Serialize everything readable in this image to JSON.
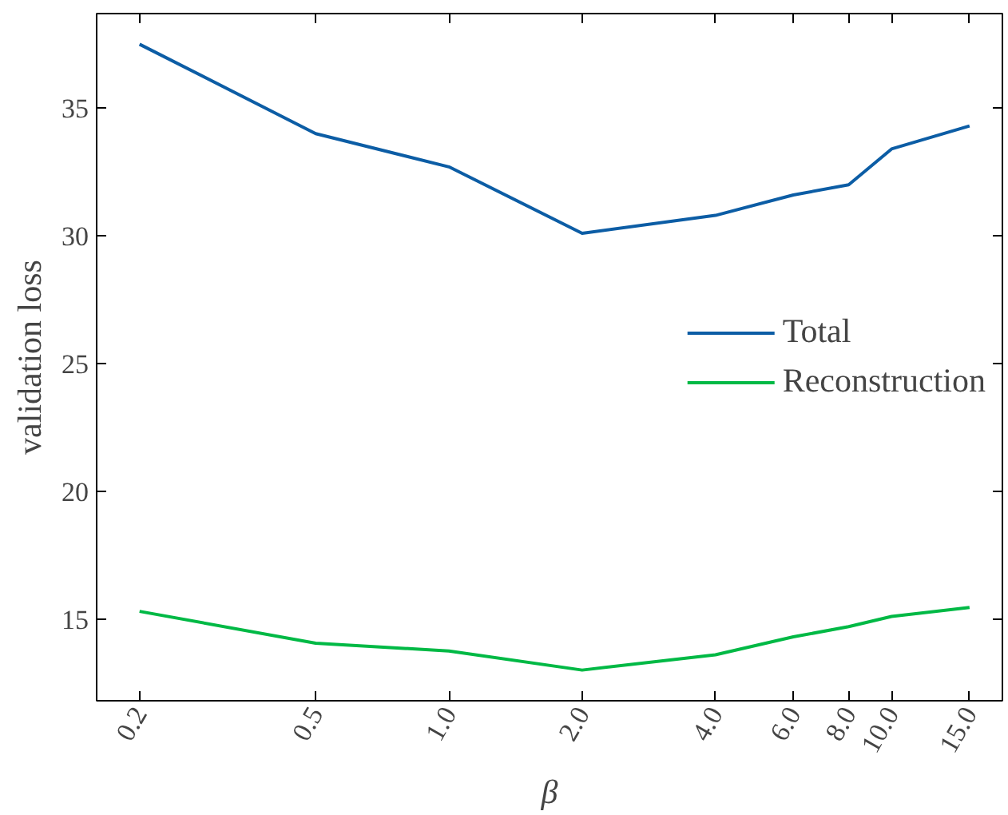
{
  "chart_data": {
    "type": "line",
    "xlabel": "β",
    "ylabel": "validation loss",
    "log": "x",
    "x": [
      0.2,
      0.5,
      1,
      2,
      4,
      6,
      8,
      10,
      15
    ],
    "series": [
      {
        "name": "Total",
        "color": "#0c5da5",
        "values": [
          37.5,
          34.0,
          32.7,
          30.1,
          30.8,
          31.6,
          32.0,
          33.4,
          34.3
        ]
      },
      {
        "name": "Reconstruction",
        "color": "#00b945",
        "values": [
          15.3,
          14.05,
          13.75,
          13.0,
          13.6,
          14.3,
          14.7,
          15.1,
          15.45
        ]
      }
    ],
    "xlim": [
      0.16,
      17.8
    ],
    "ylim": [
      11.8,
      38.7
    ],
    "xticks": [
      {
        "value": 0.2,
        "label": "0.2"
      },
      {
        "value": 0.5,
        "label": "0.5"
      },
      {
        "value": 1,
        "label": "1.0"
      },
      {
        "value": 2,
        "label": "2.0"
      },
      {
        "value": 4,
        "label": "4.0"
      },
      {
        "value": 6,
        "label": "6.0"
      },
      {
        "value": 8,
        "label": "8.0"
      },
      {
        "value": 10,
        "label": "10.0"
      },
      {
        "value": 15,
        "label": "15.0"
      }
    ],
    "yticks": [
      15,
      20,
      25,
      30,
      35
    ],
    "grid": false,
    "legend": "right",
    "marker": "none",
    "line_style": "solid"
  }
}
